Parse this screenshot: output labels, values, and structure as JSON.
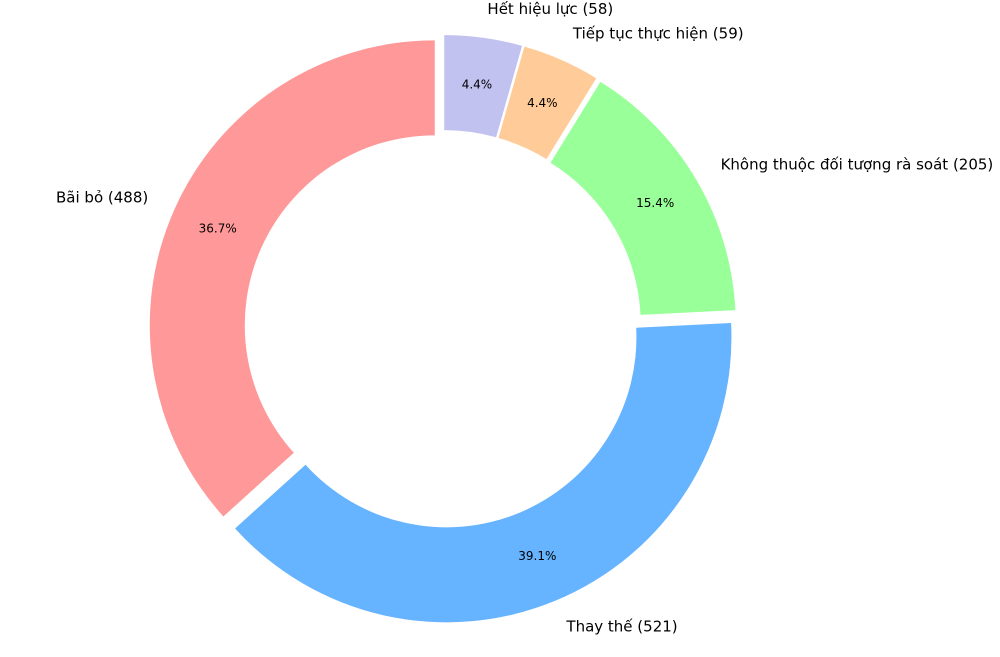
{
  "chart_data": {
    "type": "donut",
    "categories": [
      "Bãi bỏ (488)",
      "Thay thế (521)",
      "Không thuộc đối tượng rà soát (205)",
      "Tiếp tục thực hiện (59)",
      "Hết hiệu lực (58)"
    ],
    "values": [
      36.7,
      39.1,
      15.4,
      4.4,
      4.4
    ],
    "value_labels": [
      "36.7%",
      "39.1%",
      "15.4%",
      "4.4%",
      "4.4%"
    ],
    "colors": [
      "#ff9999",
      "#66b3ff",
      "#99ff99",
      "#ffcc99",
      "#c2c2f0"
    ]
  }
}
